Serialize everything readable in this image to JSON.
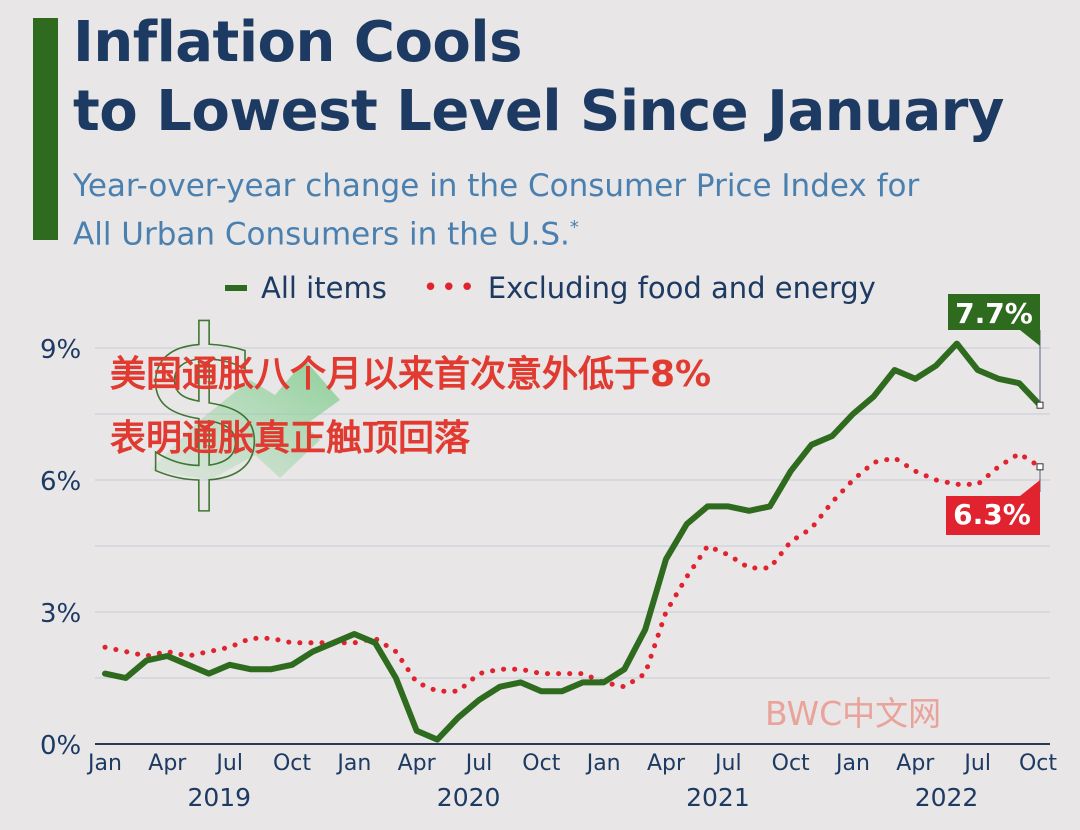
{
  "title_line1": "Inflation Cools",
  "title_line2": "to Lowest Level Since January",
  "subtitle_line1": "Year-over-year change in the Consumer Price Index for",
  "subtitle_line2": "All Urban Consumers in the U.S.",
  "subtitle_footnote": "*",
  "overlay_line1": "美国通胀八个月以来首次意外低于8%",
  "overlay_line2": "表明通胀真正触顶回落",
  "watermark": "BWC中文网",
  "colors": {
    "title": "#1d3a63",
    "subtitle": "#4a80b0",
    "all_items": "#2e6b1f",
    "core": "#e0232f",
    "overlay": "#e13a30"
  },
  "chart_data": {
    "type": "line",
    "title": "Inflation Cools to Lowest Level Since January",
    "subtitle": "Year-over-year change in the Consumer Price Index for All Urban Consumers in the U.S.*",
    "ylabel": "",
    "xlabel": "",
    "ylim": [
      0,
      9
    ],
    "y_ticks": [
      0,
      3,
      6,
      9
    ],
    "y_tick_labels": [
      "0%",
      "3%",
      "6%",
      "9%"
    ],
    "grid": true,
    "legend_position": "top",
    "x": [
      "2019-01",
      "2019-02",
      "2019-03",
      "2019-04",
      "2019-05",
      "2019-06",
      "2019-07",
      "2019-08",
      "2019-09",
      "2019-10",
      "2019-11",
      "2019-12",
      "2020-01",
      "2020-02",
      "2020-03",
      "2020-04",
      "2020-05",
      "2020-06",
      "2020-07",
      "2020-08",
      "2020-09",
      "2020-10",
      "2020-11",
      "2020-12",
      "2021-01",
      "2021-02",
      "2021-03",
      "2021-04",
      "2021-05",
      "2021-06",
      "2021-07",
      "2021-08",
      "2021-09",
      "2021-10",
      "2021-11",
      "2021-12",
      "2022-01",
      "2022-02",
      "2022-03",
      "2022-04",
      "2022-05",
      "2022-06",
      "2022-07",
      "2022-08",
      "2022-09",
      "2022-10"
    ],
    "x_tick_labels": [
      "Jan",
      "Apr",
      "Jul",
      "Oct",
      "Jan",
      "Apr",
      "Jul",
      "Oct",
      "Jan",
      "Apr",
      "Jul",
      "Oct",
      "Jan",
      "Apr",
      "Jul",
      "Oct"
    ],
    "x_tick_indices": [
      0,
      3,
      6,
      9,
      12,
      15,
      18,
      21,
      24,
      27,
      30,
      33,
      36,
      39,
      42,
      45
    ],
    "years": [
      {
        "label": "2019",
        "center_index": 5.5
      },
      {
        "label": "2020",
        "center_index": 17.5
      },
      {
        "label": "2021",
        "center_index": 29.5
      },
      {
        "label": "2022",
        "center_index": 40.5
      }
    ],
    "series": [
      {
        "name": "All items",
        "style": "solid",
        "values": [
          1.6,
          1.5,
          1.9,
          2.0,
          1.8,
          1.6,
          1.8,
          1.7,
          1.7,
          1.8,
          2.1,
          2.3,
          2.5,
          2.3,
          1.5,
          0.3,
          0.1,
          0.6,
          1.0,
          1.3,
          1.4,
          1.2,
          1.2,
          1.4,
          1.4,
          1.7,
          2.6,
          4.2,
          5.0,
          5.4,
          5.4,
          5.3,
          5.4,
          6.2,
          6.8,
          7.0,
          7.5,
          7.9,
          8.5,
          8.3,
          8.6,
          9.1,
          8.5,
          8.3,
          8.2,
          7.7
        ],
        "end_label": "7.7%"
      },
      {
        "name": "Excluding food and energy",
        "style": "dotted",
        "values": [
          2.2,
          2.1,
          2.0,
          2.1,
          2.0,
          2.1,
          2.2,
          2.4,
          2.4,
          2.3,
          2.3,
          2.3,
          2.3,
          2.4,
          2.1,
          1.4,
          1.2,
          1.2,
          1.6,
          1.7,
          1.7,
          1.6,
          1.6,
          1.6,
          1.4,
          1.3,
          1.6,
          3.0,
          3.8,
          4.5,
          4.3,
          4.0,
          4.0,
          4.6,
          4.9,
          5.5,
          6.0,
          6.4,
          6.5,
          6.2,
          6.0,
          5.9,
          5.9,
          6.3,
          6.6,
          6.3
        ],
        "end_label": "6.3%"
      }
    ]
  }
}
